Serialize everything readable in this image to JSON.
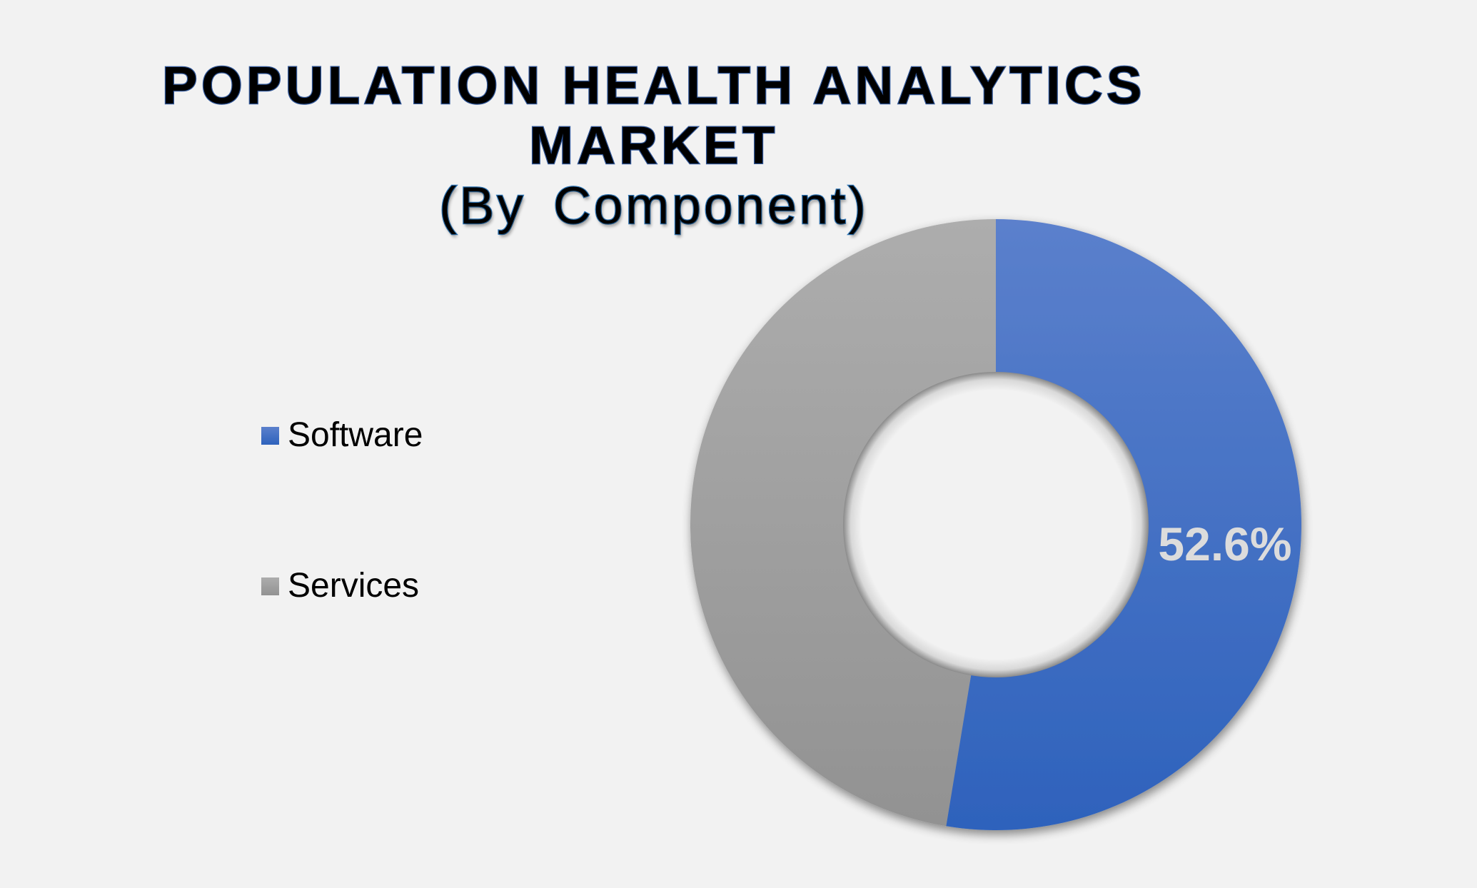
{
  "title": {
    "line1": "POPULATION HEALTH ANALYTICS",
    "line2": "MARKET",
    "line3": "(By  Component)"
  },
  "legend": {
    "items": [
      {
        "label": "Software",
        "color_top": "#5b80cc",
        "color_bottom": "#2e62bc"
      },
      {
        "label": "Services",
        "color_top": "#adadad",
        "color_bottom": "#929292"
      }
    ]
  },
  "colors": {
    "background": "#f2f2f2",
    "title_fill": "#000000",
    "title_outline": "#2f5597",
    "subtitle_outline": "#2e75b6",
    "data_label": "#dcdcdc"
  },
  "chart_data": {
    "type": "pie",
    "subtype": "donut",
    "title": "POPULATION HEALTH ANALYTICS MARKET (By Component)",
    "categories": [
      "Software",
      "Services"
    ],
    "values": [
      52.6,
      47.4
    ],
    "unit": "%",
    "data_labels": [
      {
        "category": "Software",
        "text": "52.6%"
      }
    ],
    "start_angle_deg": 0,
    "direction": "clockwise",
    "hole_ratio": 0.5,
    "legend_position": "left"
  }
}
